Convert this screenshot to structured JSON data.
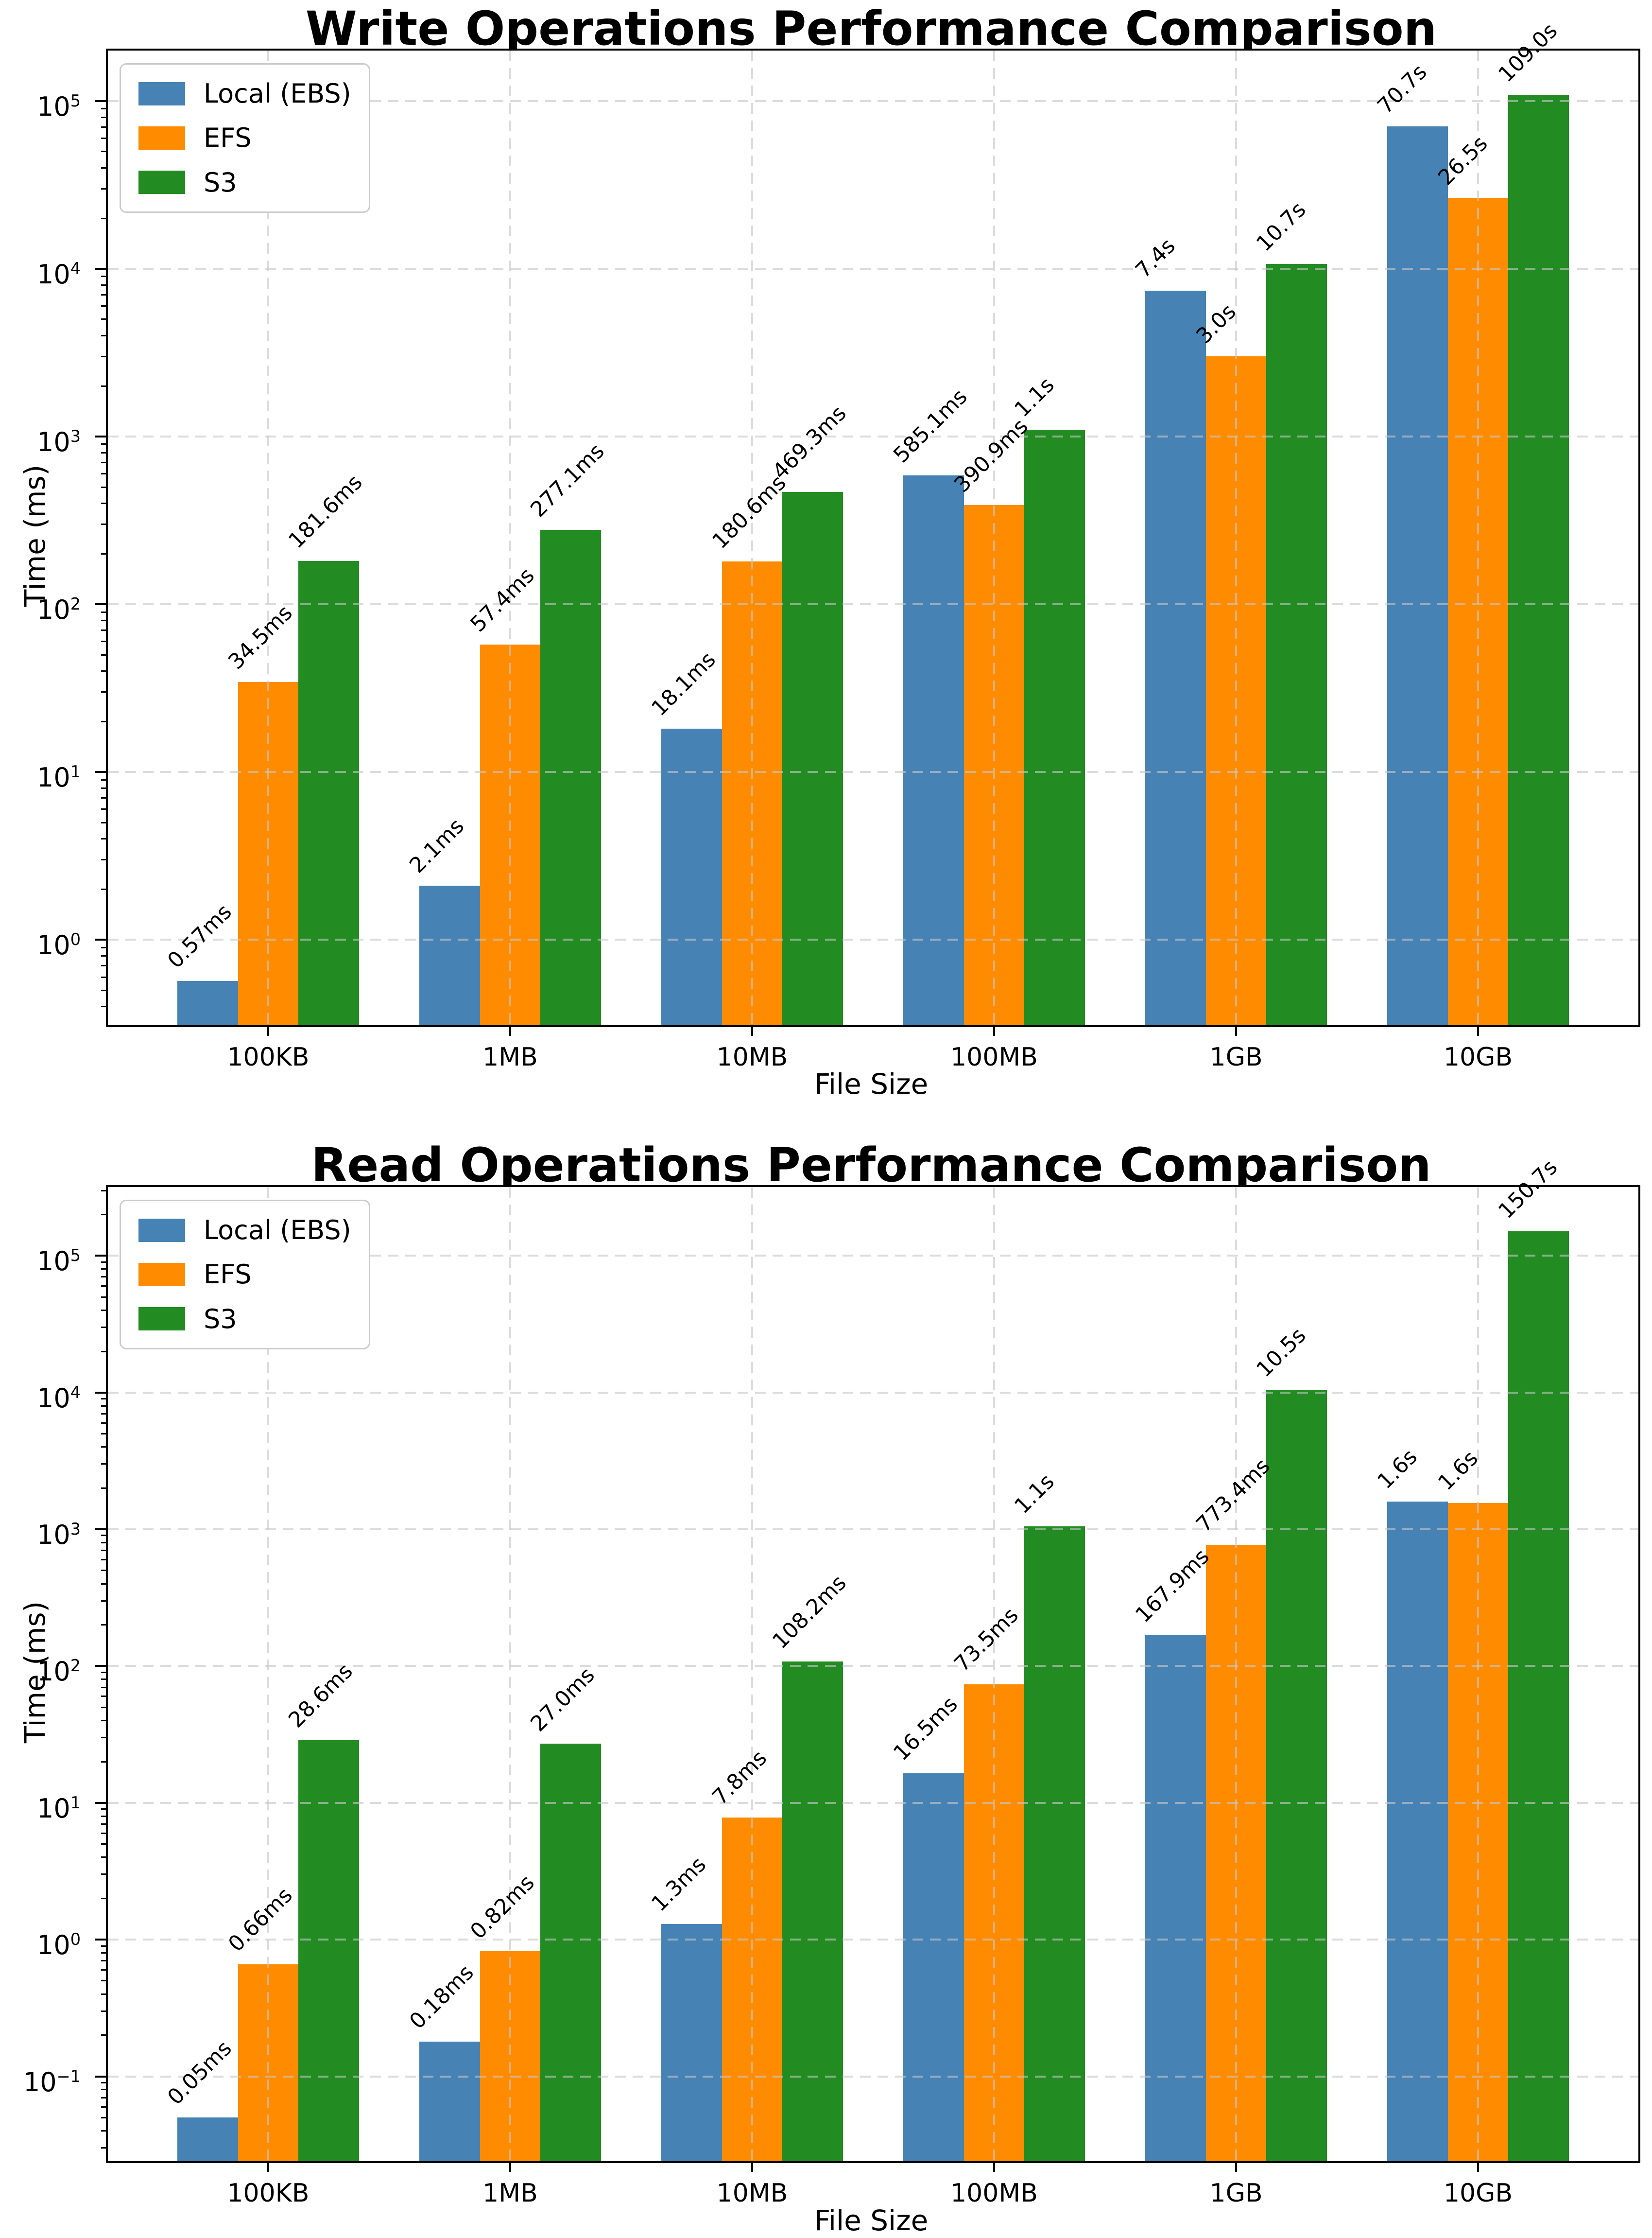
{
  "colors": {
    "local_ebs": "#4682B4",
    "efs": "#FF8C00",
    "s3": "#228B22",
    "grid": "#c7c7c7",
    "spine": "#000000",
    "background": "#ffffff"
  },
  "chart_data": [
    {
      "type": "bar",
      "title": "Write Operations Performance Comparison",
      "xlabel": "File Size",
      "ylabel": "Time (ms)",
      "yscale": "log",
      "grid": true,
      "legend_loc": "upper left",
      "categories": [
        "100KB",
        "1MB",
        "10MB",
        "100MB",
        "1GB",
        "10GB"
      ],
      "series": [
        {
          "name": "Local (EBS)",
          "color": "#4682B4",
          "values": [
            0.57,
            2.1,
            18.1,
            585.1,
            7400,
            70700
          ],
          "labels": [
            "0.57ms",
            "2.1ms",
            "18.1ms",
            "585.1ms",
            "7.4s",
            "70.7s"
          ]
        },
        {
          "name": "EFS",
          "color": "#FF8C00",
          "values": [
            34.5,
            57.4,
            180.6,
            390.9,
            3000,
            26500
          ],
          "labels": [
            "34.5ms",
            "57.4ms",
            "180.6ms",
            "390.9ms",
            "3.0s",
            "26.5s"
          ]
        },
        {
          "name": "S3",
          "color": "#228B22",
          "values": [
            181.6,
            277.1,
            469.3,
            1100,
            10700,
            109000
          ],
          "labels": [
            "181.6ms",
            "277.1ms",
            "469.3ms",
            "1.1s",
            "10.7s",
            "109.0s"
          ]
        }
      ],
      "xlim": [
        -0.6625,
        5.6625
      ],
      "bar_width": 0.25,
      "ylim": [
        0.31,
        200000
      ],
      "yticks": [
        {
          "v": 1,
          "base": "10",
          "exp": "0"
        },
        {
          "v": 10,
          "base": "10",
          "exp": "1"
        },
        {
          "v": 100,
          "base": "10",
          "exp": "2"
        },
        {
          "v": 1000,
          "base": "10",
          "exp": "3"
        },
        {
          "v": 10000,
          "base": "10",
          "exp": "4"
        },
        {
          "v": 100000,
          "base": "10",
          "exp": "5"
        }
      ]
    },
    {
      "type": "bar",
      "title": "Read Operations Performance Comparison",
      "xlabel": "File Size",
      "ylabel": "Time (ms)",
      "yscale": "log",
      "grid": true,
      "legend_loc": "upper left",
      "categories": [
        "100KB",
        "1MB",
        "10MB",
        "100MB",
        "1GB",
        "10GB"
      ],
      "series": [
        {
          "name": "Local (EBS)",
          "color": "#4682B4",
          "values": [
            0.05,
            0.18,
            1.3,
            16.5,
            167.9,
            1600
          ],
          "labels": [
            "0.05ms",
            "0.18ms",
            "1.3ms",
            "16.5ms",
            "167.9ms",
            "1.6s"
          ]
        },
        {
          "name": "EFS",
          "color": "#FF8C00",
          "values": [
            0.66,
            0.82,
            7.8,
            73.5,
            773.4,
            1560
          ],
          "labels": [
            "0.66ms",
            "0.82ms",
            "7.8ms",
            "73.5ms",
            "773.4ms",
            "1.6s"
          ]
        },
        {
          "name": "S3",
          "color": "#228B22",
          "values": [
            28.6,
            27.0,
            108.2,
            1050,
            10500,
            150700
          ],
          "labels": [
            "28.6ms",
            "27.0ms",
            "108.2ms",
            "1.1s",
            "10.5s",
            "150.7s"
          ]
        }
      ],
      "xlim": [
        -0.6625,
        5.6625
      ],
      "bar_width": 0.25,
      "ylim": [
        0.024,
        318000
      ],
      "yticks": [
        {
          "v": 0.1,
          "base": "10",
          "exp": "−1"
        },
        {
          "v": 1,
          "base": "10",
          "exp": "0"
        },
        {
          "v": 10,
          "base": "10",
          "exp": "1"
        },
        {
          "v": 100,
          "base": "10",
          "exp": "2"
        },
        {
          "v": 1000,
          "base": "10",
          "exp": "3"
        },
        {
          "v": 10000,
          "base": "10",
          "exp": "4"
        },
        {
          "v": 100000,
          "base": "10",
          "exp": "5"
        }
      ]
    }
  ]
}
